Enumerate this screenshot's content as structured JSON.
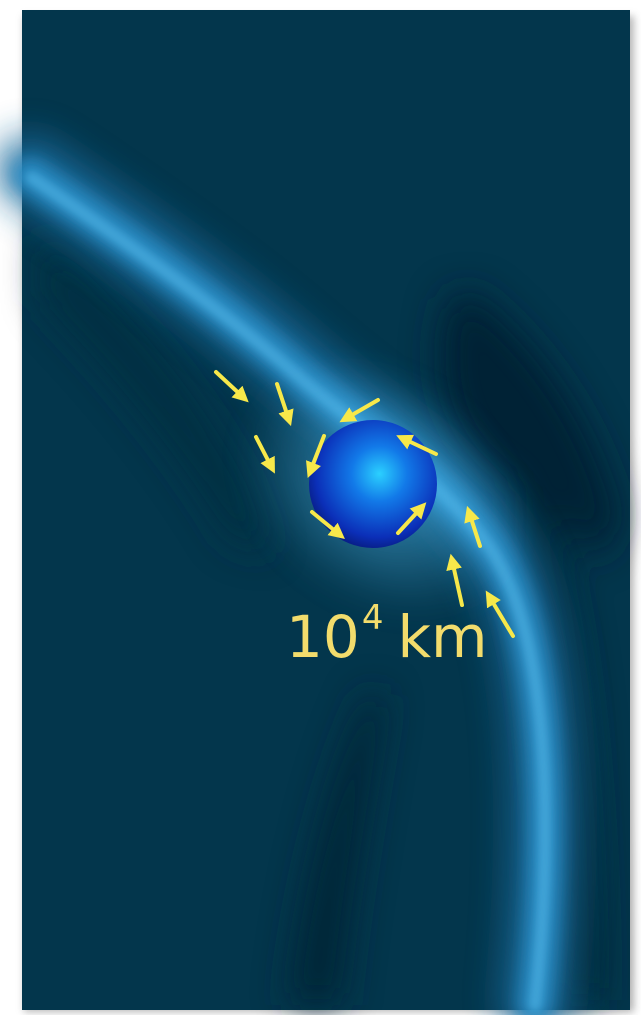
{
  "scale_label": {
    "base": "10",
    "exponent": "4",
    "unit": "km"
  },
  "colors": {
    "background": "#03364c",
    "stream": "#2f8fc6",
    "sphere_core": "#22c3f5",
    "sphere_edge": "#0a1c9a",
    "arrows": "#f7e84a",
    "label": "#f3dc6c"
  },
  "icons": {
    "arrow": "yellow-inflow-arrow",
    "body": "collapsing-sphere"
  }
}
